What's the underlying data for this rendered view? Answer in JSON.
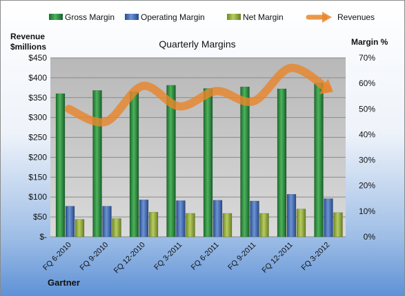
{
  "chart_data": {
    "type": "bar",
    "title": "Quarterly Margins",
    "ylabel_left": "Revenue $millions",
    "ylabel_right": "Margin %",
    "source_label": "Gartner",
    "categories": [
      "FQ 6-2010",
      "FQ 9-2010",
      "FQ 12-2010",
      "FQ 3-2011",
      "FQ 6-2011",
      "FQ 9-2011",
      "FQ 12-2011",
      "FQ 3-2012"
    ],
    "left_axis": {
      "range": [
        0,
        450
      ],
      "ticks": [
        0,
        50,
        100,
        150,
        200,
        250,
        300,
        350,
        400,
        450
      ],
      "tick_labels": [
        "$-",
        "$50",
        "$100",
        "$150",
        "$200",
        "$250",
        "$300",
        "$350",
        "$400",
        "$450"
      ]
    },
    "right_axis": {
      "range": [
        0,
        70
      ],
      "ticks": [
        0,
        10,
        20,
        30,
        40,
        50,
        60,
        70
      ],
      "tick_labels": [
        "0%",
        "10%",
        "20%",
        "30%",
        "40%",
        "50%",
        "60%",
        "70%"
      ]
    },
    "grid": true,
    "legend": "top",
    "series": [
      {
        "name": "Gross Margin",
        "kind": "bar",
        "axis": "left",
        "color": "#2e8b3c",
        "values": [
          360,
          368,
          365,
          381,
          373,
          377,
          372,
          387
        ]
      },
      {
        "name": "Operating Margin",
        "kind": "bar",
        "axis": "left",
        "color": "#3d68b0",
        "values": [
          77,
          77,
          93,
          91,
          92,
          90,
          107,
          96
        ]
      },
      {
        "name": "Net Margin",
        "kind": "bar",
        "axis": "left",
        "color": "#93ad3c",
        "values": [
          44,
          46,
          62,
          59,
          59,
          59,
          70,
          61
        ]
      },
      {
        "name": "Revenues",
        "kind": "line",
        "axis": "right",
        "color": "#e8862c",
        "values": [
          50,
          45,
          59,
          51,
          57,
          53,
          66,
          58
        ]
      }
    ]
  }
}
